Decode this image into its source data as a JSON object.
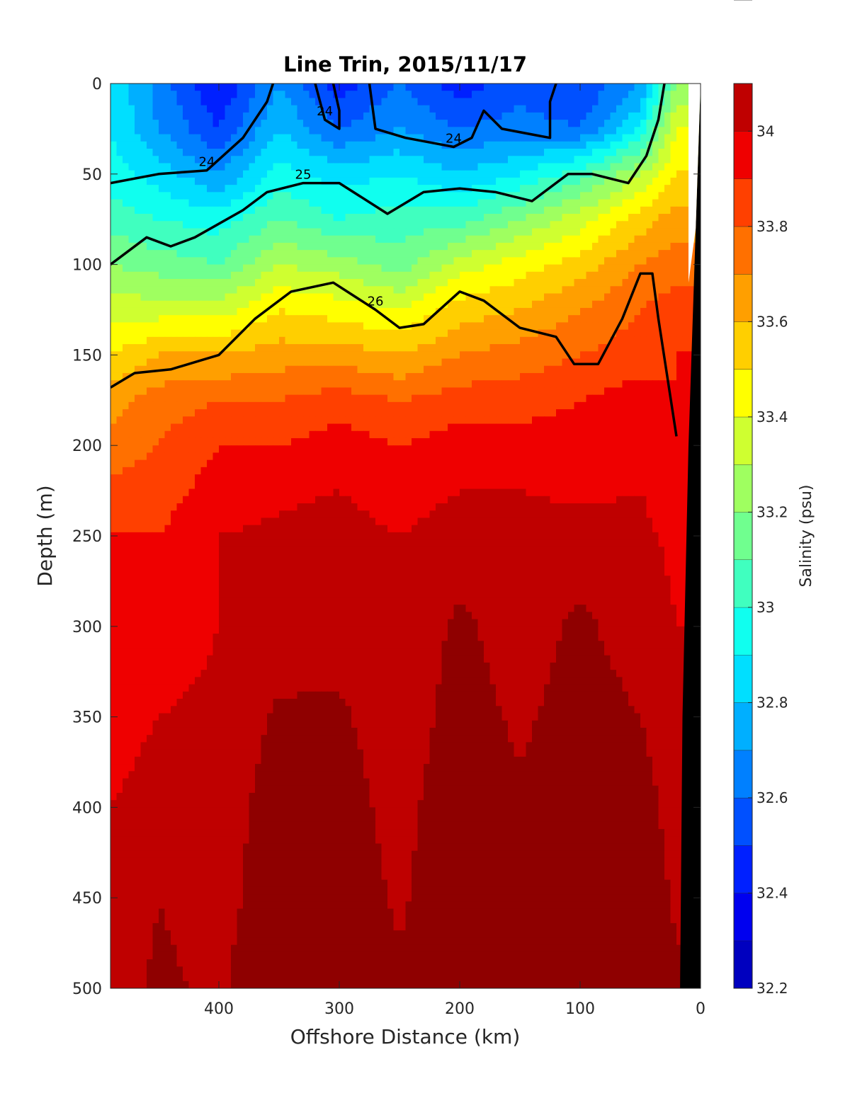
{
  "chart_data": {
    "type": "heatmap",
    "title": "Line Trin, 2015/11/17",
    "xlabel": "Offshore Distance (km)",
    "ylabel": "Depth (m)",
    "x_reversed": true,
    "y_reversed": true,
    "xlim": [
      0,
      490
    ],
    "ylim": [
      0,
      500
    ],
    "xticks": [
      400,
      300,
      200,
      100,
      0
    ],
    "yticks": [
      0,
      50,
      100,
      150,
      200,
      250,
      300,
      350,
      400,
      450,
      500
    ],
    "colorbar": {
      "label": "Salinity (psu)",
      "range": [
        32.2,
        34.1
      ],
      "levels": [
        32.2,
        32.3,
        32.4,
        32.5,
        32.6,
        32.7,
        32.8,
        32.9,
        33.0,
        33.1,
        33.2,
        33.3,
        33.4,
        33.5,
        33.6,
        33.7,
        33.8,
        33.9,
        34.0,
        34.1
      ],
      "tick_values": [
        32.2,
        32.4,
        32.6,
        32.8,
        33,
        33.2,
        33.4,
        33.6,
        33.8,
        34
      ],
      "colors": [
        "#00008f",
        "#0000bf",
        "#0000ef",
        "#0020ff",
        "#0050ff",
        "#0080ff",
        "#00afff",
        "#00dfff",
        "#10ffef",
        "#40ffbf",
        "#70ff8f",
        "#9fff60",
        "#cfff30",
        "#ffff00",
        "#ffcf00",
        "#ff9f00",
        "#ff7000",
        "#ff4000",
        "#ef0000",
        "#bf0000",
        "#8f0000"
      ],
      "colormap": "jet"
    },
    "salinity_field": {
      "x": [
        490,
        450,
        400,
        350,
        300,
        250,
        200,
        150,
        100,
        50,
        20
      ],
      "depth": [
        0,
        25,
        50,
        75,
        100,
        125,
        150,
        175,
        200,
        225,
        250,
        300,
        350,
        400,
        450,
        500
      ],
      "values": [
        [
          32.9,
          32.65,
          32.4,
          32.7,
          32.45,
          32.6,
          32.45,
          32.55,
          32.5,
          32.7,
          33.2
        ],
        [
          32.9,
          32.7,
          32.5,
          32.8,
          32.6,
          32.7,
          32.6,
          32.65,
          32.6,
          32.9,
          33.4
        ],
        [
          32.95,
          32.85,
          32.7,
          32.95,
          32.85,
          32.9,
          32.8,
          32.9,
          33.05,
          33.3,
          33.5
        ],
        [
          33.05,
          33.0,
          32.95,
          33.1,
          33.0,
          33.05,
          33.05,
          33.2,
          33.35,
          33.55,
          33.65
        ],
        [
          33.2,
          33.15,
          33.1,
          33.3,
          33.25,
          33.15,
          33.35,
          33.45,
          33.55,
          33.7,
          33.75
        ],
        [
          33.35,
          33.35,
          33.35,
          33.5,
          33.45,
          33.4,
          33.55,
          33.6,
          33.7,
          33.8,
          33.85
        ],
        [
          33.5,
          33.6,
          33.6,
          33.65,
          33.65,
          33.6,
          33.7,
          33.75,
          33.8,
          33.85,
          33.9
        ],
        [
          33.65,
          33.75,
          33.8,
          33.8,
          33.85,
          33.8,
          33.85,
          33.85,
          33.9,
          33.95,
          33.9
        ],
        [
          33.75,
          33.8,
          33.9,
          33.9,
          33.95,
          33.9,
          33.95,
          33.95,
          33.95,
          33.95,
          33.95
        ],
        [
          33.82,
          33.85,
          33.95,
          33.98,
          34.0,
          33.95,
          34.0,
          34.0,
          33.98,
          34.0,
          33.95
        ],
        [
          33.9,
          33.9,
          34.0,
          34.02,
          34.04,
          34.0,
          34.05,
          34.03,
          34.05,
          34.02,
          33.98
        ],
        [
          33.95,
          33.95,
          34.0,
          34.03,
          34.05,
          34.02,
          34.12,
          34.05,
          34.12,
          34.05,
          34.0
        ],
        [
          33.98,
          34.0,
          34.02,
          34.12,
          34.12,
          34.03,
          34.15,
          34.08,
          34.15,
          34.1,
          34.02
        ],
        [
          34.0,
          34.02,
          34.05,
          34.15,
          34.15,
          34.06,
          34.18,
          34.12,
          34.18,
          34.15,
          34.05
        ],
        [
          34.02,
          34.1,
          34.05,
          34.18,
          34.18,
          34.08,
          34.2,
          34.15,
          34.2,
          34.18,
          34.08
        ],
        [
          34.05,
          34.12,
          34.08,
          34.22,
          34.2,
          34.12,
          34.22,
          34.18,
          34.22,
          34.2,
          34.12
        ]
      ]
    },
    "density_contours": [
      {
        "level": "24",
        "labeled": true,
        "thick": true,
        "x": [
          490,
          450,
          410,
          380,
          360,
          355
        ],
        "depth": [
          55,
          50,
          48,
          30,
          10,
          0
        ]
      },
      {
        "level": "24",
        "labeled": true,
        "thick": true,
        "x": [
          320,
          312,
          300,
          300,
          305
        ],
        "depth": [
          0,
          20,
          25,
          15,
          0
        ]
      },
      {
        "level": "24",
        "labeled": true,
        "thick": true,
        "x": [
          275,
          270,
          245,
          205,
          190,
          180,
          165,
          125,
          125,
          120
        ],
        "depth": [
          0,
          25,
          30,
          35,
          30,
          15,
          25,
          30,
          10,
          0
        ]
      },
      {
        "level": "25",
        "labeled": true,
        "thick": true,
        "x": [
          490,
          460,
          440,
          420,
          380,
          360,
          330,
          300,
          260,
          230,
          200,
          170,
          140,
          110,
          90,
          60,
          45,
          35,
          30
        ],
        "depth": [
          100,
          85,
          90,
          85,
          70,
          60,
          55,
          55,
          72,
          60,
          58,
          60,
          65,
          50,
          50,
          55,
          40,
          20,
          0
        ]
      },
      {
        "level": "26",
        "labeled": true,
        "thick": true,
        "x": [
          490,
          470,
          440,
          400,
          370,
          340,
          305,
          270,
          250,
          230,
          200,
          180,
          150,
          120,
          105,
          85,
          65,
          50,
          40,
          35,
          20
        ],
        "depth": [
          168,
          160,
          158,
          150,
          130,
          115,
          110,
          125,
          135,
          133,
          115,
          120,
          135,
          140,
          155,
          155,
          130,
          105,
          105,
          130,
          195
        ]
      }
    ]
  }
}
